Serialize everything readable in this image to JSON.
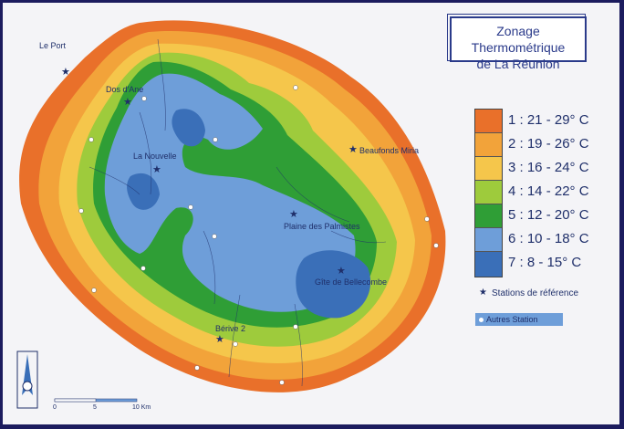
{
  "title": {
    "line1": "Zonage Thermométrique",
    "line2": "de La Réunion"
  },
  "legend": {
    "zones": [
      {
        "label": "1 : 21 - 29° C",
        "color": "#e9702a"
      },
      {
        "label": "2 : 19 - 26° C",
        "color": "#f2a33a"
      },
      {
        "label": "3 : 16 - 24° C",
        "color": "#f5c64b"
      },
      {
        "label": "4 : 14 - 22° C",
        "color": "#9ecb3c"
      },
      {
        "label": "5 : 12 - 20° C",
        "color": "#2f9e36"
      },
      {
        "label": "6 : 10 - 18° C",
        "color": "#6e9ed9"
      },
      {
        "label": "7 : 8 - 15° C",
        "color": "#3a6fb8"
      }
    ],
    "reference_stations": "Stations de référence",
    "other_stations": "Autres Station"
  },
  "places": {
    "le_port": "Le Port",
    "dos_dane": "Dos d'Ane",
    "la_nouvelle": "La Nouvelle",
    "beaufonds": "Beaufonds Miria",
    "plaine": "Plaine des Palmistes",
    "gite": "Gîte de Bellecombe",
    "berive": "Bérive 2"
  },
  "scale": {
    "t0": "0",
    "t5": "5",
    "t10": "10 Km"
  }
}
